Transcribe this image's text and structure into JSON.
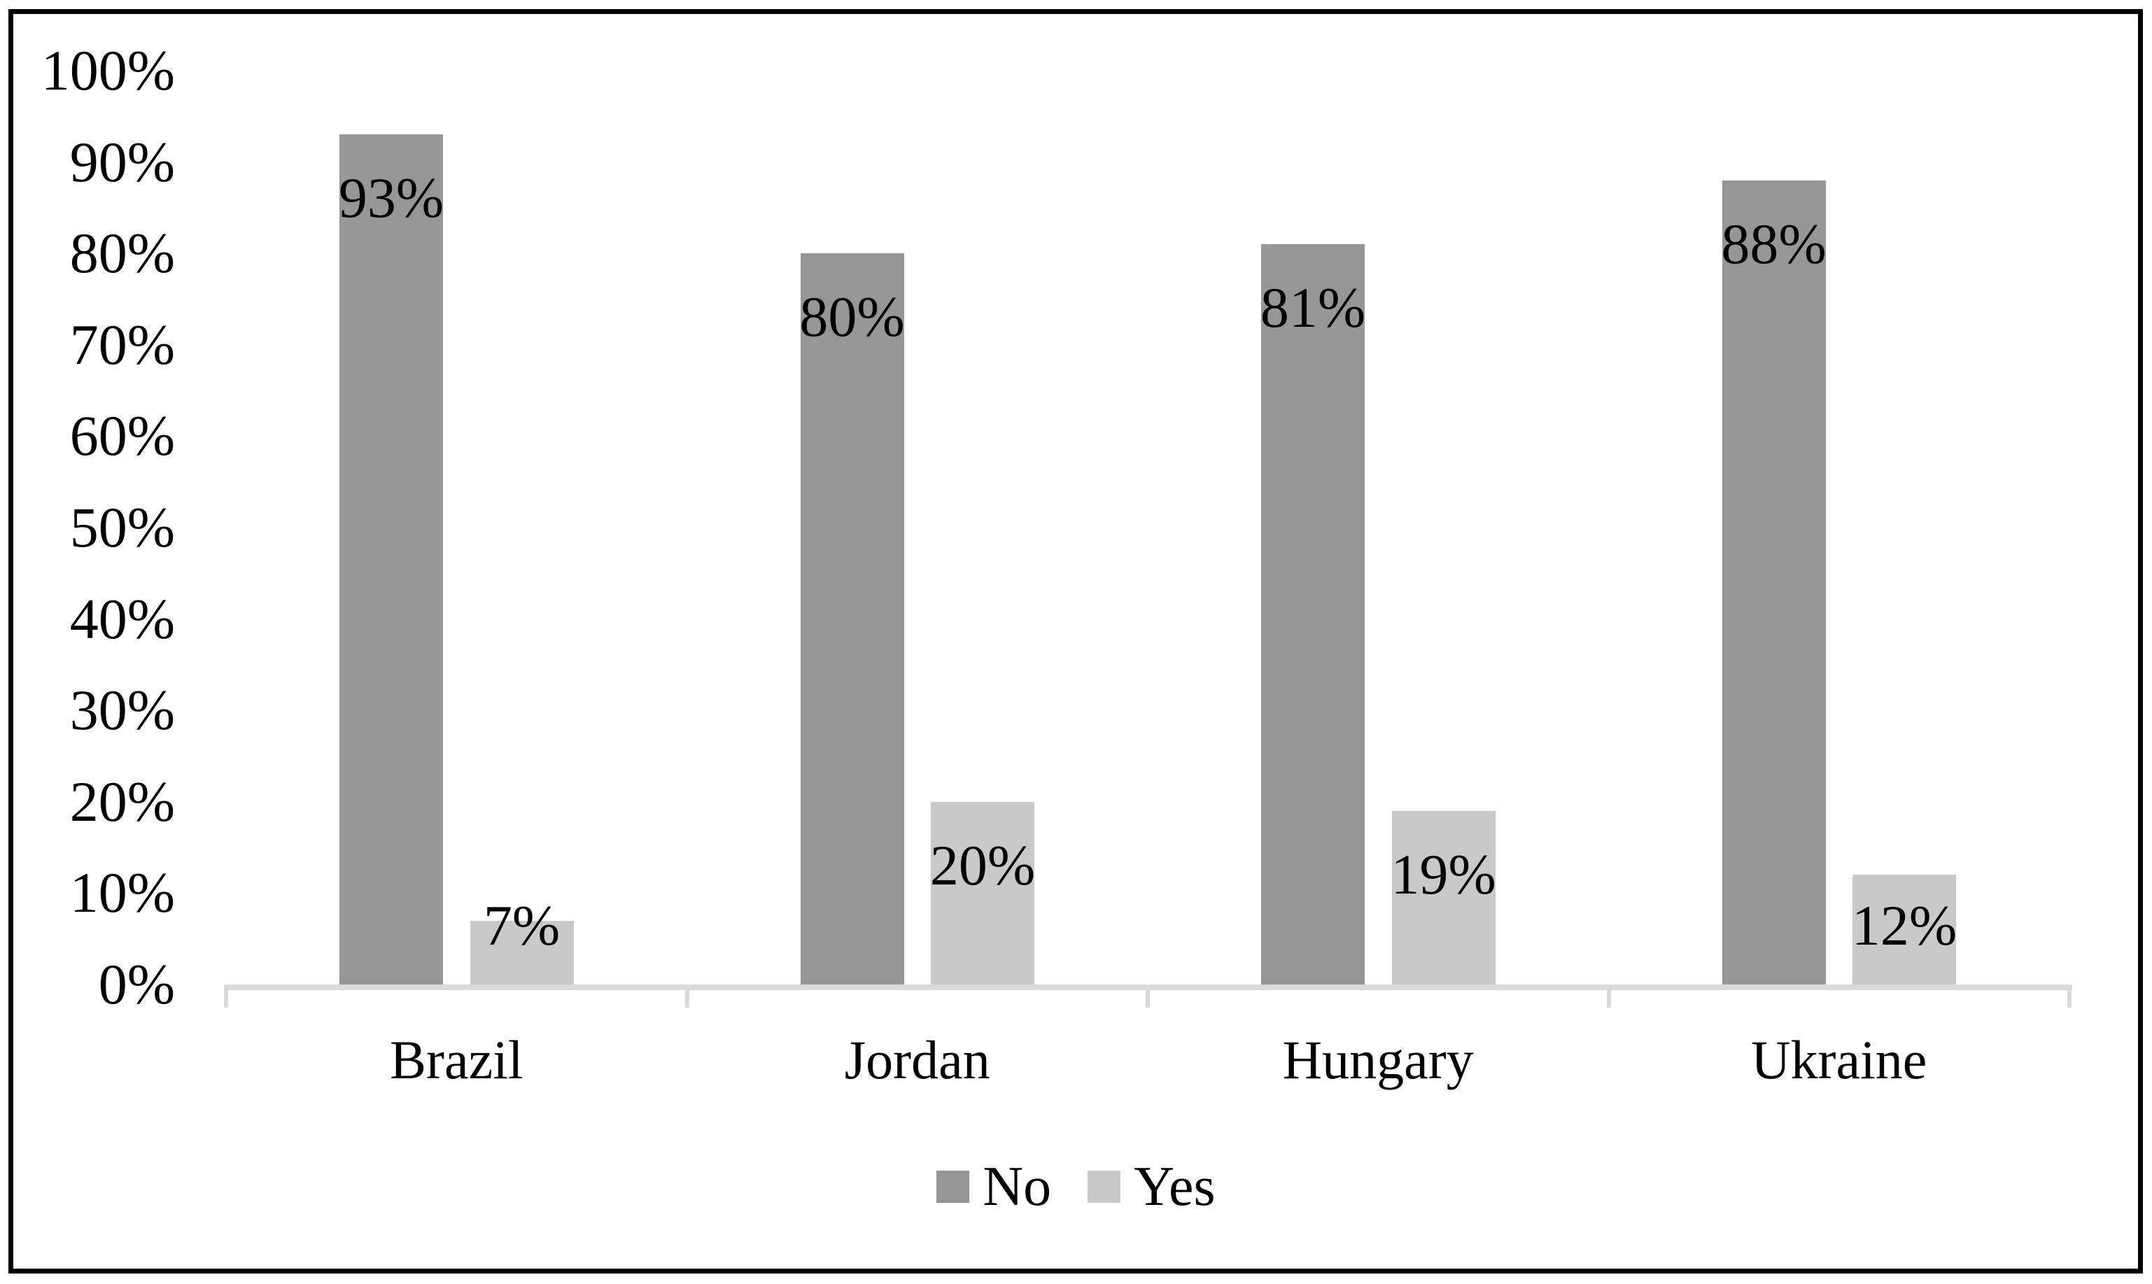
{
  "chart_data": {
    "type": "bar",
    "title": "",
    "xlabel": "",
    "ylabel": "",
    "categories": [
      "Brazil",
      "Jordan",
      "Hungary",
      "Ukraine"
    ],
    "series": [
      {
        "name": "No",
        "color": "#969696",
        "values": [
          93,
          80,
          81,
          88
        ],
        "labels": [
          "93%",
          "80%",
          "81%",
          "88%"
        ]
      },
      {
        "name": "Yes",
        "color": "#c9c9c9",
        "values": [
          7,
          20,
          19,
          12
        ],
        "labels": [
          "7%",
          "20%",
          "19%",
          "12%"
        ]
      }
    ],
    "ylim": [
      0,
      100
    ],
    "ytick_step": 10,
    "ytick_labels": [
      "0%",
      "10%",
      "20%",
      "30%",
      "40%",
      "50%",
      "60%",
      "70%",
      "80%",
      "90%",
      "100%"
    ],
    "grid": false,
    "legend_position": "bottom",
    "data_label_position": "inside-end"
  },
  "legend": {
    "items": [
      {
        "label": "No",
        "color": "#969696"
      },
      {
        "label": "Yes",
        "color": "#c9c9c9"
      }
    ]
  },
  "colors": {
    "background": "#ffffff",
    "border": "#000000",
    "axis_line": "#d9d9d9",
    "tick_mark": "#d9d9d9",
    "text": "#000000",
    "series_no": "#969696",
    "series_yes": "#c9c9c9"
  }
}
